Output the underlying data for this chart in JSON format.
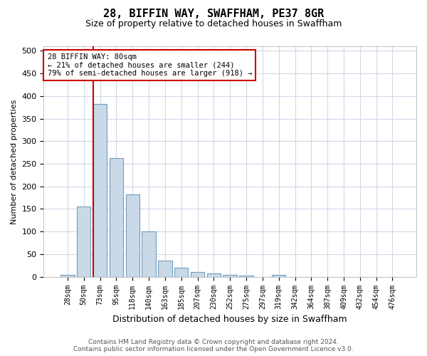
{
  "title": "28, BIFFIN WAY, SWAFFHAM, PE37 8GR",
  "subtitle": "Size of property relative to detached houses in Swaffham",
  "xlabel": "Distribution of detached houses by size in Swaffham",
  "ylabel": "Number of detached properties",
  "bin_labels": [
    "28sqm",
    "50sqm",
    "73sqm",
    "95sqm",
    "118sqm",
    "140sqm",
    "163sqm",
    "185sqm",
    "207sqm",
    "230sqm",
    "252sqm",
    "275sqm",
    "297sqm",
    "319sqm",
    "342sqm",
    "364sqm",
    "387sqm",
    "409sqm",
    "432sqm",
    "454sqm",
    "476sqm"
  ],
  "bar_heights": [
    5,
    155,
    383,
    263,
    183,
    100,
    35,
    20,
    10,
    8,
    5,
    2,
    0,
    5,
    0,
    0,
    0,
    0,
    0,
    0,
    0
  ],
  "bar_color": "#c9d9e8",
  "bar_edge_color": "#6e9ec0",
  "vline_x_index": 2,
  "vline_color": "#cc0000",
  "ylim": [
    0,
    510
  ],
  "yticks": [
    0,
    50,
    100,
    150,
    200,
    250,
    300,
    350,
    400,
    450,
    500
  ],
  "annotation_text": "28 BIFFIN WAY: 80sqm\n← 21% of detached houses are smaller (244)\n79% of semi-detached houses are larger (918) →",
  "annotation_box_color": "#ffffff",
  "annotation_box_edge": "#cc0000",
  "footer_text": "Contains HM Land Registry data © Crown copyright and database right 2024.\nContains public sector information licensed under the Open Government Licence v3.0.",
  "background_color": "#ffffff",
  "grid_color": "#d0d8e8",
  "title_fontsize": 11,
  "subtitle_fontsize": 9,
  "ylabel_fontsize": 8,
  "xlabel_fontsize": 9,
  "tick_fontsize": 8,
  "xtick_fontsize": 7,
  "annotation_fontsize": 7.5,
  "footer_fontsize": 6.5
}
